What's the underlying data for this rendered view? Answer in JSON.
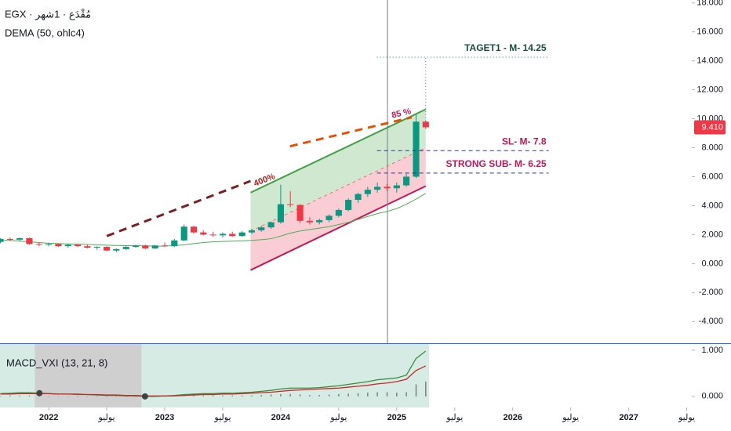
{
  "chart_data": [
    {
      "type": "candlestick",
      "title": "EGX · مُقْدَع · 1شهر",
      "x": [
        2021.583,
        2021.667,
        2021.75,
        2021.833,
        2021.917,
        2022.0,
        2022.083,
        2022.167,
        2022.25,
        2022.333,
        2022.417,
        2022.5,
        2022.583,
        2022.667,
        2022.75,
        2022.833,
        2022.917,
        2023.0,
        2023.083,
        2023.167,
        2023.25,
        2023.333,
        2023.417,
        2023.5,
        2023.583,
        2023.667,
        2023.75,
        2023.833,
        2023.917,
        2024.0,
        2024.083,
        2024.167,
        2024.25,
        2024.333,
        2024.417,
        2024.5,
        2024.583,
        2024.667,
        2024.75,
        2024.833,
        2024.917,
        2025.0,
        2025.083,
        2025.167,
        2025.25
      ],
      "open": [
        1.5,
        1.7,
        1.65,
        1.75,
        1.35,
        1.3,
        1.35,
        1.2,
        1.3,
        1.2,
        1.1,
        1.15,
        0.9,
        1.0,
        1.15,
        1.25,
        1.05,
        1.25,
        1.2,
        1.6,
        2.55,
        2.15,
        2.0,
        1.95,
        2.05,
        1.9,
        2.15,
        2.3,
        2.5,
        2.85,
        4.1,
        4.05,
        2.95,
        2.85,
        3.0,
        3.3,
        3.7,
        4.4,
        4.8,
        5.1,
        5.3,
        5.2,
        5.4,
        6.0,
        9.8
      ],
      "high": [
        1.75,
        1.8,
        1.8,
        1.8,
        1.45,
        1.45,
        1.4,
        1.35,
        1.35,
        1.3,
        1.2,
        1.2,
        1.05,
        1.2,
        1.3,
        1.3,
        1.3,
        1.45,
        1.7,
        2.7,
        2.6,
        2.3,
        2.2,
        2.15,
        2.2,
        2.25,
        2.4,
        2.6,
        2.9,
        5.45,
        5.0,
        4.1,
        3.2,
        3.1,
        3.4,
        3.8,
        4.5,
        4.9,
        5.3,
        5.6,
        5.5,
        5.6,
        6.2,
        10.3,
        9.9
      ],
      "low": [
        1.4,
        1.55,
        1.55,
        1.3,
        1.2,
        1.2,
        1.15,
        1.1,
        1.15,
        1.05,
        0.95,
        0.85,
        0.8,
        0.95,
        1.1,
        1.0,
        1.0,
        1.15,
        1.15,
        1.55,
        2.05,
        1.95,
        1.85,
        1.8,
        1.85,
        1.85,
        2.05,
        2.2,
        2.4,
        2.75,
        3.9,
        2.8,
        2.7,
        2.7,
        2.85,
        3.2,
        3.6,
        4.2,
        4.6,
        4.9,
        5.0,
        4.9,
        5.3,
        5.9,
        9.3
      ],
      "close": [
        1.7,
        1.65,
        1.75,
        1.35,
        1.3,
        1.35,
        1.2,
        1.3,
        1.2,
        1.1,
        1.15,
        0.9,
        1.0,
        1.15,
        1.25,
        1.05,
        1.25,
        1.2,
        1.6,
        2.55,
        2.15,
        2.0,
        1.95,
        2.05,
        1.9,
        2.15,
        2.3,
        2.5,
        2.85,
        4.1,
        4.05,
        2.95,
        2.85,
        3.0,
        3.3,
        3.7,
        4.4,
        4.8,
        5.1,
        5.3,
        5.2,
        5.4,
        6.0,
        9.8,
        9.41
      ],
      "up_color": "#089981",
      "down_color": "#f23645",
      "series": [
        {
          "name": "DEMA (50, ohlc4)",
          "color": "#4caf50",
          "values": [
            1.6,
            1.6,
            1.55,
            1.5,
            1.45,
            1.4,
            1.38,
            1.36,
            1.34,
            1.32,
            1.3,
            1.27,
            1.25,
            1.24,
            1.23,
            1.22,
            1.2,
            1.21,
            1.24,
            1.3,
            1.38,
            1.45,
            1.5,
            1.53,
            1.55,
            1.57,
            1.6,
            1.65,
            1.72,
            1.9,
            2.1,
            2.25,
            2.35,
            2.45,
            2.55,
            2.7,
            2.85,
            3.05,
            3.25,
            3.45,
            3.6,
            3.8,
            4.1,
            4.45,
            4.85
          ]
        }
      ],
      "xlim": [
        2021.58,
        2027.53
      ],
      "ylim": [
        -5.5,
        18.2
      ],
      "yticks": [
        {
          "value": -4,
          "label": "-4.000"
        },
        {
          "value": -2,
          "label": "-2.000"
        },
        {
          "value": 0,
          "label": "0.000"
        },
        {
          "value": 2,
          "label": "2.000"
        },
        {
          "value": 4,
          "label": "4.000"
        },
        {
          "value": 6,
          "label": "6.000"
        },
        {
          "value": 8,
          "label": "8.000"
        },
        {
          "value": 10,
          "label": "10.000"
        },
        {
          "value": 12,
          "label": "12.000"
        },
        {
          "value": 14,
          "label": "14.000"
        },
        {
          "value": 16,
          "label": "16.000"
        },
        {
          "value": 18,
          "label": "18.000"
        }
      ],
      "price_label": {
        "value": 9.41,
        "label": "9.410",
        "color": "#f23645"
      },
      "cursor_x": 2024.92,
      "channel": {
        "x": [
          2023.74,
          2025.25
        ],
        "upper": [
          4.9,
          10.65
        ],
        "lower": [
          -0.45,
          5.35
        ],
        "upper_color": "#43a047",
        "lower_color": "#c2185b",
        "upper_fill": "#cfe8cf",
        "lower_fill": "#f9cdd3",
        "mid_color": "#e57373"
      },
      "trendlines": [
        {
          "x": [
            2022.5,
            2023.74
          ],
          "y": [
            1.9,
            5.7
          ],
          "color": "#7b1f24",
          "dash": "10,7",
          "weight": "thick"
        },
        {
          "x": [
            2024.08,
            2025.13
          ],
          "y": [
            8.1,
            10.1
          ],
          "color": "#e65100",
          "dash": "10,7",
          "weight": "thick"
        },
        {
          "x": [
            2025.25,
            2025.25
          ],
          "y": [
            9.6,
            14.25
          ],
          "color": "#5c6bc0",
          "dash": "1,3",
          "weight": "thin"
        }
      ],
      "texts": [
        {
          "text": "400%",
          "x": 2023.86,
          "y": 5.75,
          "color": "#b71c1c",
          "along": 0
        },
        {
          "text": "85 %",
          "x": 2025.04,
          "y": 10.35,
          "color": "#c2185b",
          "along": 1
        }
      ],
      "levels": [
        {
          "label": "TAGET1 - M- 14.25",
          "value": 14.25,
          "x": [
            2024.83,
            2026.31
          ],
          "color": "#00796b",
          "text_color": "#1b4d3e",
          "dash": "1,3"
        },
        {
          "label": "SL- M- 7.8",
          "value": 7.8,
          "x": [
            2024.83,
            2026.31
          ],
          "color": "#283593",
          "text_color": "#c2185b",
          "dash": "5,4"
        },
        {
          "label": "STRONG SUB- M-  6.25",
          "value": 6.25,
          "x": [
            2024.83,
            2026.31
          ],
          "color": "#283593",
          "text_color": "#c2185b",
          "dash": "5,4"
        }
      ]
    },
    {
      "type": "line",
      "title": "MACD_VXI (13, 21, 8)",
      "x": [
        2021.583,
        2021.667,
        2021.75,
        2021.833,
        2021.917,
        2022.0,
        2022.083,
        2022.167,
        2022.25,
        2022.333,
        2022.417,
        2022.5,
        2022.583,
        2022.667,
        2022.75,
        2022.833,
        2022.917,
        2023.0,
        2023.083,
        2023.167,
        2023.25,
        2023.333,
        2023.417,
        2023.5,
        2023.583,
        2023.667,
        2023.75,
        2023.833,
        2023.917,
        2024.0,
        2024.083,
        2024.167,
        2024.25,
        2024.333,
        2024.417,
        2024.5,
        2024.583,
        2024.667,
        2024.75,
        2024.833,
        2024.917,
        2025.0,
        2025.083,
        2025.167,
        2025.25
      ],
      "series": [
        {
          "color": "#388e3c",
          "values": [
            0.06,
            0.07,
            0.08,
            0.08,
            0.07,
            0.06,
            0.05,
            0.05,
            0.04,
            0.04,
            0.03,
            0.02,
            0.02,
            0.01,
            0.01,
            0.0,
            0.0,
            0.01,
            0.02,
            0.04,
            0.05,
            0.06,
            0.06,
            0.07,
            0.07,
            0.08,
            0.09,
            0.11,
            0.13,
            0.16,
            0.18,
            0.18,
            0.18,
            0.19,
            0.21,
            0.23,
            0.26,
            0.29,
            0.32,
            0.36,
            0.38,
            0.4,
            0.46,
            0.82,
            0.98
          ]
        },
        {
          "color": "#c62828",
          "values": [
            0.05,
            0.05,
            0.06,
            0.06,
            0.06,
            0.06,
            0.05,
            0.05,
            0.05,
            0.04,
            0.04,
            0.03,
            0.03,
            0.02,
            0.02,
            0.01,
            0.01,
            0.01,
            0.01,
            0.02,
            0.03,
            0.04,
            0.04,
            0.05,
            0.05,
            0.06,
            0.07,
            0.08,
            0.09,
            0.11,
            0.13,
            0.14,
            0.15,
            0.16,
            0.17,
            0.18,
            0.2,
            0.22,
            0.24,
            0.27,
            0.29,
            0.32,
            0.37,
            0.56,
            0.66
          ]
        },
        {
          "color": "#7f7f7f",
          "style": "histogram",
          "values": [
            0.01,
            0.02,
            0.02,
            0.02,
            0.01,
            0,
            0,
            0,
            -0.01,
            0,
            -0.01,
            -0.01,
            -0.01,
            -0.01,
            -0.01,
            -0.01,
            -0.01,
            0,
            0.01,
            0.02,
            0.02,
            0.02,
            0.02,
            0.02,
            0.02,
            0.02,
            0.02,
            0.03,
            0.04,
            0.05,
            0.05,
            0.04,
            0.03,
            0.03,
            0.04,
            0.05,
            0.06,
            0.07,
            0.08,
            0.09,
            0.09,
            0.08,
            0.09,
            0.26,
            0.32
          ]
        }
      ],
      "background_ranges": [
        {
          "x": [
            2021.58,
            2025.28
          ],
          "color": "#d6ebe4"
        },
        {
          "x": [
            2021.88,
            2022.8
          ],
          "color": "#cfcfcf"
        }
      ],
      "markers": {
        "x": [
          2021.92,
          2022.83
        ],
        "values": [
          0.07,
          0.0
        ],
        "color": "#424242"
      },
      "xlim": [
        2021.58,
        2027.53
      ],
      "ylim": [
        -0.24,
        1.15
      ],
      "yticks": [
        {
          "value": 0,
          "label": "0.000"
        },
        {
          "value": 1,
          "label": "1.000"
        }
      ],
      "xticks": [
        2022,
        {
          "value": 2022.5,
          "label": "يوليو"
        },
        2023,
        {
          "value": 2023.5,
          "label": "يوليو"
        },
        2024,
        {
          "value": 2024.5,
          "label": "يوليو"
        },
        2025,
        {
          "value": 2025.5,
          "label": "يوليو"
        },
        2026,
        {
          "value": 2026.5,
          "label": "يوليو"
        },
        2027,
        {
          "value": 2027.5,
          "label": "يوليو"
        }
      ]
    }
  ]
}
